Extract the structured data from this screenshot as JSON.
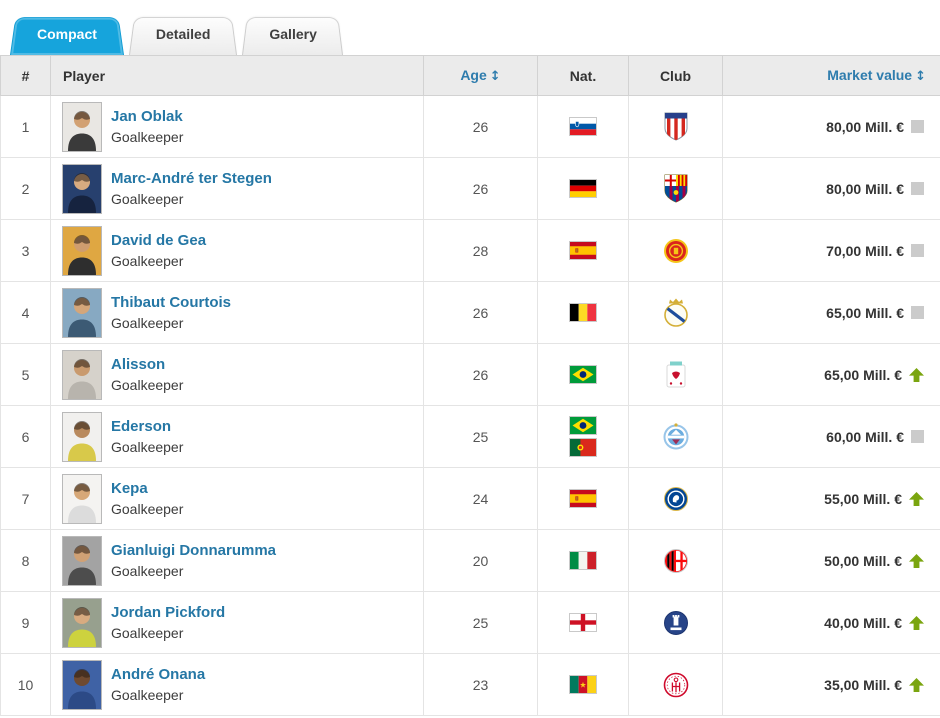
{
  "tabs": {
    "items": [
      {
        "label": "Compact",
        "active": true
      },
      {
        "label": "Detailed",
        "active": false
      },
      {
        "label": "Gallery",
        "active": false
      }
    ]
  },
  "table": {
    "headers": {
      "rank": "#",
      "player": "Player",
      "age": "Age",
      "nat": "Nat.",
      "club": "Club",
      "value": "Market value"
    },
    "sort_icon": "↕",
    "rows": [
      {
        "rank": "1",
        "name": "Jan Oblak",
        "position": "Goalkeeper",
        "age": "26",
        "nations": [
          "slovenia"
        ],
        "club": "atletico-madrid",
        "value": "80,00 Mill. €",
        "trend": "steady",
        "photo": {
          "bg": "#e9e7e3",
          "shirt": "#3a3a3a",
          "skin": "#d2a173"
        }
      },
      {
        "rank": "2",
        "name": "Marc-André ter Stegen",
        "position": "Goalkeeper",
        "age": "26",
        "nations": [
          "germany"
        ],
        "club": "fc-barcelona",
        "value": "80,00 Mill. €",
        "trend": "steady",
        "photo": {
          "bg": "#27406e",
          "shirt": "#16233f",
          "skin": "#d8ab80"
        }
      },
      {
        "rank": "3",
        "name": "David de Gea",
        "position": "Goalkeeper",
        "age": "28",
        "nations": [
          "spain"
        ],
        "club": "manchester-united",
        "value": "70,00 Mill. €",
        "trend": "steady",
        "photo": {
          "bg": "#dfa742",
          "shirt": "#2e2e2e",
          "skin": "#cf9d6f"
        }
      },
      {
        "rank": "4",
        "name": "Thibaut Courtois",
        "position": "Goalkeeper",
        "age": "26",
        "nations": [
          "belgium"
        ],
        "club": "real-madrid",
        "value": "65,00 Mill. €",
        "trend": "steady",
        "photo": {
          "bg": "#87a9c2",
          "shirt": "#3c5a74",
          "skin": "#d4a67a"
        }
      },
      {
        "rank": "5",
        "name": "Alisson",
        "position": "Goalkeeper",
        "age": "26",
        "nations": [
          "brazil"
        ],
        "club": "liverpool",
        "value": "65,00 Mill. €",
        "trend": "up",
        "photo": {
          "bg": "#d6d2cb",
          "shirt": "#b8b4ad",
          "skin": "#c99a6e"
        }
      },
      {
        "rank": "6",
        "name": "Ederson",
        "position": "Goalkeeper",
        "age": "25",
        "nations": [
          "brazil",
          "portugal"
        ],
        "club": "manchester-city",
        "value": "60,00 Mill. €",
        "trend": "steady",
        "photo": {
          "bg": "#f1f0ee",
          "shirt": "#d8c94a",
          "skin": "#b98a5e"
        }
      },
      {
        "rank": "7",
        "name": "Kepa",
        "position": "Goalkeeper",
        "age": "24",
        "nations": [
          "spain"
        ],
        "club": "chelsea",
        "value": "55,00 Mill. €",
        "trend": "up",
        "photo": {
          "bg": "#f4f3f1",
          "shirt": "#dcdcdc",
          "skin": "#d7a878"
        }
      },
      {
        "rank": "8",
        "name": "Gianluigi Donnarumma",
        "position": "Goalkeeper",
        "age": "20",
        "nations": [
          "italy"
        ],
        "club": "ac-milan",
        "value": "50,00 Mill. €",
        "trend": "up",
        "photo": {
          "bg": "#a3a3a3",
          "shirt": "#4d4d4d",
          "skin": "#d0a175"
        }
      },
      {
        "rank": "9",
        "name": "Jordan Pickford",
        "position": "Goalkeeper",
        "age": "25",
        "nations": [
          "england"
        ],
        "club": "everton",
        "value": "40,00 Mill. €",
        "trend": "up",
        "photo": {
          "bg": "#97a08e",
          "shirt": "#cdd23e",
          "skin": "#d8ab80"
        }
      },
      {
        "rank": "10",
        "name": "André Onana",
        "position": "Goalkeeper",
        "age": "23",
        "nations": [
          "cameroon"
        ],
        "club": "ajax",
        "value": "35,00 Mill. €",
        "trend": "up",
        "photo": {
          "bg": "#3f62a5",
          "shirt": "#2c4a86",
          "skin": "#6f4a30"
        }
      }
    ]
  },
  "colors": {
    "active_tab_blue": "#16a4dc",
    "link_blue": "#2577a5",
    "sort_header_blue": "#2e7cad",
    "trend_up_green": "#7aa50f",
    "trend_steady_grey": "#cbcbcb",
    "header_bg": "#ebebeb"
  }
}
